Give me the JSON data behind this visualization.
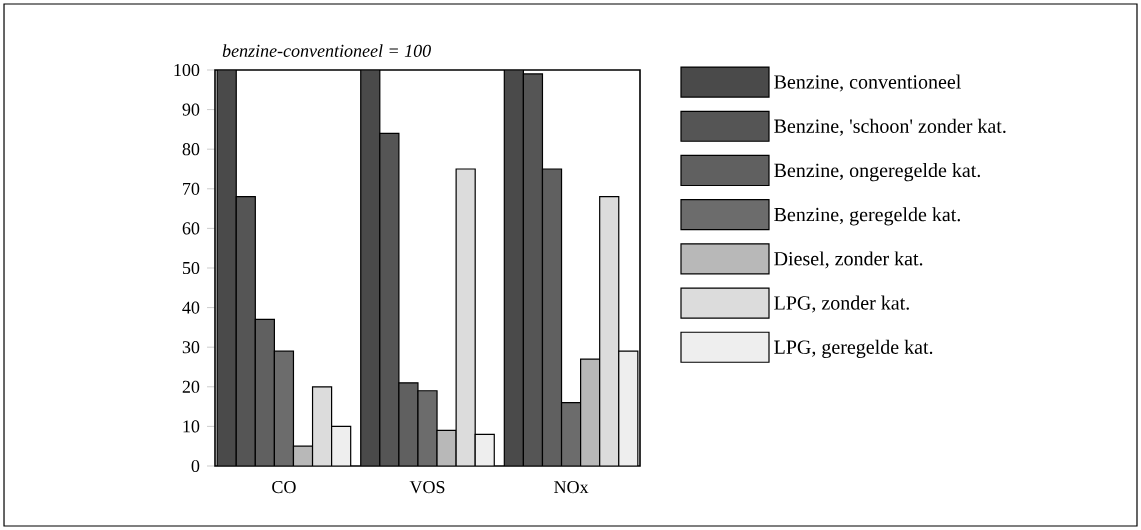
{
  "chart_data": {
    "type": "bar",
    "ylabel": "*benzine-conventioneel = 100*",
    "categories": [
      "CO",
      "VOS",
      "NOx"
    ],
    "series": [
      {
        "name": "Benzine, conventioneel",
        "color": "#4a4a4a",
        "values": [
          100,
          100,
          100
        ]
      },
      {
        "name": "Benzine, 'schoon' zonder kat.",
        "color": "#555555",
        "values": [
          68,
          84,
          99
        ]
      },
      {
        "name": "Benzine, ongeregelde kat.",
        "color": "#606060",
        "values": [
          37,
          21,
          75
        ]
      },
      {
        "name": "Benzine, geregelde kat.",
        "color": "#6c6c6c",
        "values": [
          29,
          19,
          16
        ]
      },
      {
        "name": "Diesel, zonder kat.",
        "color": "#b8b8b8",
        "values": [
          5,
          9,
          27
        ]
      },
      {
        "name": "LPG, zonder kat.",
        "color": "#dcdcdc",
        "values": [
          20,
          75,
          68
        ]
      },
      {
        "name": "LPG, geregelde kat.",
        "color": "#eeeeee",
        "values": [
          10,
          8,
          29
        ]
      }
    ],
    "ylim": [
      0,
      100
    ],
    "yticks": [
      0,
      10,
      20,
      30,
      40,
      50,
      60,
      70,
      80,
      90,
      100
    ],
    "grid": false,
    "legend": "right"
  }
}
